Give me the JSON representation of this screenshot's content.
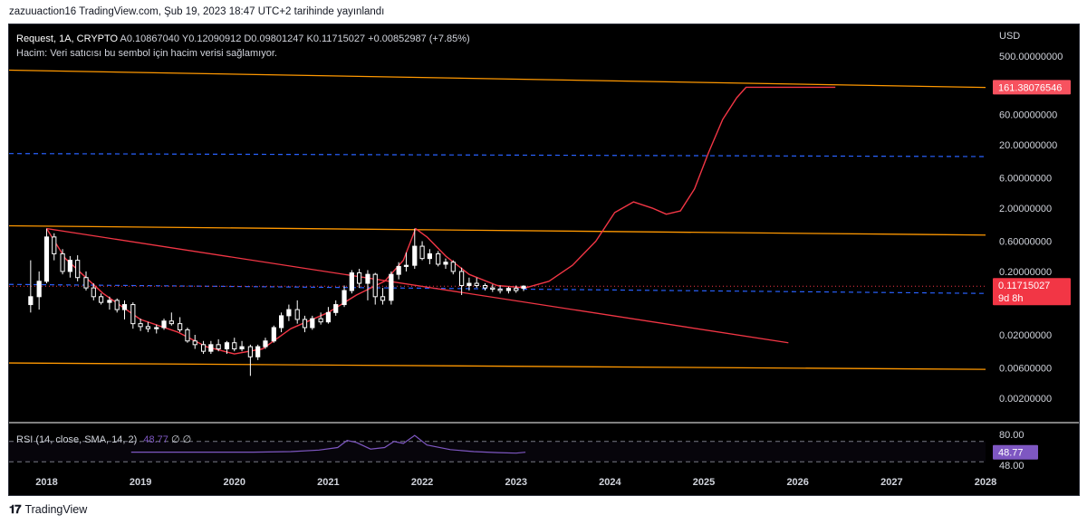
{
  "publish_line": "zazuuaction16 TradingView.com, Şub 19, 2023 18:47 UTC+2 tarihinde yayınlandı",
  "legend": {
    "symbol_line": "Request, 1A, CRYPTO",
    "ohlc": "A0.10867040  Y0.12090912  D0.09801247  K0.11715027  +0.00852987 (+7.85%)",
    "volume_note": "Hacim: Veri satıcısı bu sembol için hacim verisi sağlamıyor."
  },
  "rsi_legend": {
    "label": "RSI (14, close, SMA, 14, 2)",
    "value": "48.77",
    "extra": "∅  ∅"
  },
  "footer": {
    "logo_mark": "𝟏𝟕",
    "logo_word": "TradingView"
  },
  "chart_data": {
    "type": "candlestick",
    "title": "Request, 1A, CRYPTO",
    "currency_label": "USD",
    "y_scale": "log",
    "y_tick_labels": [
      "500.00000000",
      "60.00000000",
      "20.00000000",
      "6.00000000",
      "2.00000000",
      "0.60000000",
      "0.20000000",
      "0.02000000",
      "0.00600000",
      "0.00200000"
    ],
    "y_ticks": [
      500,
      60,
      20,
      6,
      2,
      0.6,
      0.2,
      0.02,
      0.006,
      0.002
    ],
    "x_tick_labels": [
      "2018",
      "2019",
      "2020",
      "2021",
      "2022",
      "2023",
      "2024",
      "2025",
      "2026",
      "2027",
      "2028"
    ],
    "x_range": [
      2017.6,
      2028.0
    ],
    "last_price": {
      "label": "0.11715027",
      "countdown": "9d 8h",
      "value": 0.11715027
    },
    "target_price": {
      "label": "161.38076546",
      "value": 161.38
    },
    "ohlc": {
      "open": "0.10867040",
      "high": "0.12090912",
      "low": "0.09801247",
      "close": "0.11715027",
      "change": "+0.00852987",
      "change_pct": "+7.85%"
    },
    "candles": [
      {
        "t": 2017.83,
        "o": 0.06,
        "h": 0.3,
        "l": 0.045,
        "c": 0.08
      },
      {
        "t": 2017.92,
        "o": 0.08,
        "h": 0.2,
        "l": 0.05,
        "c": 0.14
      },
      {
        "t": 2018.0,
        "o": 0.14,
        "h": 0.95,
        "l": 0.13,
        "c": 0.7
      },
      {
        "t": 2018.08,
        "o": 0.7,
        "h": 0.8,
        "l": 0.3,
        "c": 0.38
      },
      {
        "t": 2018.17,
        "o": 0.38,
        "h": 0.45,
        "l": 0.18,
        "c": 0.2
      },
      {
        "t": 2018.25,
        "o": 0.2,
        "h": 0.35,
        "l": 0.16,
        "c": 0.3
      },
      {
        "t": 2018.33,
        "o": 0.3,
        "h": 0.36,
        "l": 0.14,
        "c": 0.16
      },
      {
        "t": 2018.42,
        "o": 0.16,
        "h": 0.2,
        "l": 0.1,
        "c": 0.11
      },
      {
        "t": 2018.5,
        "o": 0.11,
        "h": 0.13,
        "l": 0.07,
        "c": 0.08
      },
      {
        "t": 2018.58,
        "o": 0.08,
        "h": 0.09,
        "l": 0.06,
        "c": 0.065
      },
      {
        "t": 2018.67,
        "o": 0.065,
        "h": 0.08,
        "l": 0.05,
        "c": 0.07
      },
      {
        "t": 2018.75,
        "o": 0.07,
        "h": 0.075,
        "l": 0.045,
        "c": 0.05
      },
      {
        "t": 2018.83,
        "o": 0.05,
        "h": 0.07,
        "l": 0.035,
        "c": 0.06
      },
      {
        "t": 2018.92,
        "o": 0.06,
        "h": 0.065,
        "l": 0.025,
        "c": 0.03
      },
      {
        "t": 2019.0,
        "o": 0.03,
        "h": 0.036,
        "l": 0.023,
        "c": 0.027
      },
      {
        "t": 2019.08,
        "o": 0.027,
        "h": 0.032,
        "l": 0.022,
        "c": 0.025
      },
      {
        "t": 2019.17,
        "o": 0.025,
        "h": 0.029,
        "l": 0.021,
        "c": 0.026
      },
      {
        "t": 2019.25,
        "o": 0.026,
        "h": 0.036,
        "l": 0.024,
        "c": 0.033
      },
      {
        "t": 2019.33,
        "o": 0.033,
        "h": 0.045,
        "l": 0.028,
        "c": 0.03
      },
      {
        "t": 2019.42,
        "o": 0.03,
        "h": 0.038,
        "l": 0.022,
        "c": 0.024
      },
      {
        "t": 2019.5,
        "o": 0.024,
        "h": 0.026,
        "l": 0.015,
        "c": 0.016
      },
      {
        "t": 2019.58,
        "o": 0.016,
        "h": 0.02,
        "l": 0.012,
        "c": 0.014
      },
      {
        "t": 2019.67,
        "o": 0.014,
        "h": 0.016,
        "l": 0.01,
        "c": 0.011
      },
      {
        "t": 2019.75,
        "o": 0.011,
        "h": 0.016,
        "l": 0.01,
        "c": 0.014
      },
      {
        "t": 2019.83,
        "o": 0.014,
        "h": 0.017,
        "l": 0.011,
        "c": 0.012
      },
      {
        "t": 2019.92,
        "o": 0.012,
        "h": 0.016,
        "l": 0.01,
        "c": 0.015
      },
      {
        "t": 2020.0,
        "o": 0.015,
        "h": 0.018,
        "l": 0.011,
        "c": 0.012
      },
      {
        "t": 2020.08,
        "o": 0.012,
        "h": 0.016,
        "l": 0.011,
        "c": 0.013
      },
      {
        "t": 2020.17,
        "o": 0.013,
        "h": 0.014,
        "l": 0.0045,
        "c": 0.009
      },
      {
        "t": 2020.25,
        "o": 0.009,
        "h": 0.014,
        "l": 0.008,
        "c": 0.013
      },
      {
        "t": 2020.33,
        "o": 0.013,
        "h": 0.018,
        "l": 0.012,
        "c": 0.016
      },
      {
        "t": 2020.42,
        "o": 0.016,
        "h": 0.028,
        "l": 0.015,
        "c": 0.026
      },
      {
        "t": 2020.5,
        "o": 0.026,
        "h": 0.045,
        "l": 0.022,
        "c": 0.04
      },
      {
        "t": 2020.58,
        "o": 0.04,
        "h": 0.06,
        "l": 0.033,
        "c": 0.05
      },
      {
        "t": 2020.67,
        "o": 0.05,
        "h": 0.07,
        "l": 0.03,
        "c": 0.035
      },
      {
        "t": 2020.75,
        "o": 0.035,
        "h": 0.04,
        "l": 0.022,
        "c": 0.026
      },
      {
        "t": 2020.83,
        "o": 0.026,
        "h": 0.04,
        "l": 0.024,
        "c": 0.036
      },
      {
        "t": 2020.92,
        "o": 0.036,
        "h": 0.045,
        "l": 0.029,
        "c": 0.032
      },
      {
        "t": 2021.0,
        "o": 0.032,
        "h": 0.055,
        "l": 0.03,
        "c": 0.045
      },
      {
        "t": 2021.08,
        "o": 0.045,
        "h": 0.07,
        "l": 0.04,
        "c": 0.06
      },
      {
        "t": 2021.17,
        "o": 0.06,
        "h": 0.12,
        "l": 0.055,
        "c": 0.1
      },
      {
        "t": 2021.25,
        "o": 0.1,
        "h": 0.21,
        "l": 0.09,
        "c": 0.19
      },
      {
        "t": 2021.33,
        "o": 0.19,
        "h": 0.22,
        "l": 0.11,
        "c": 0.13
      },
      {
        "t": 2021.42,
        "o": 0.13,
        "h": 0.21,
        "l": 0.07,
        "c": 0.18
      },
      {
        "t": 2021.5,
        "o": 0.18,
        "h": 0.19,
        "l": 0.06,
        "c": 0.08
      },
      {
        "t": 2021.58,
        "o": 0.08,
        "h": 0.11,
        "l": 0.06,
        "c": 0.07
      },
      {
        "t": 2021.67,
        "o": 0.07,
        "h": 0.2,
        "l": 0.06,
        "c": 0.18
      },
      {
        "t": 2021.75,
        "o": 0.18,
        "h": 0.28,
        "l": 0.15,
        "c": 0.24
      },
      {
        "t": 2021.83,
        "o": 0.24,
        "h": 0.4,
        "l": 0.2,
        "c": 0.25
      },
      {
        "t": 2021.92,
        "o": 0.25,
        "h": 0.95,
        "l": 0.22,
        "c": 0.5
      },
      {
        "t": 2022.0,
        "o": 0.5,
        "h": 0.6,
        "l": 0.3,
        "c": 0.32
      },
      {
        "t": 2022.08,
        "o": 0.32,
        "h": 0.45,
        "l": 0.26,
        "c": 0.38
      },
      {
        "t": 2022.17,
        "o": 0.38,
        "h": 0.42,
        "l": 0.24,
        "c": 0.26
      },
      {
        "t": 2022.25,
        "o": 0.26,
        "h": 0.32,
        "l": 0.22,
        "c": 0.28
      },
      {
        "t": 2022.33,
        "o": 0.28,
        "h": 0.3,
        "l": 0.18,
        "c": 0.2
      },
      {
        "t": 2022.42,
        "o": 0.2,
        "h": 0.23,
        "l": 0.085,
        "c": 0.12
      },
      {
        "t": 2022.5,
        "o": 0.12,
        "h": 0.16,
        "l": 0.1,
        "c": 0.13
      },
      {
        "t": 2022.58,
        "o": 0.13,
        "h": 0.16,
        "l": 0.11,
        "c": 0.12
      },
      {
        "t": 2022.67,
        "o": 0.12,
        "h": 0.13,
        "l": 0.1,
        "c": 0.11
      },
      {
        "t": 2022.75,
        "o": 0.11,
        "h": 0.125,
        "l": 0.095,
        "c": 0.105
      },
      {
        "t": 2022.83,
        "o": 0.105,
        "h": 0.12,
        "l": 0.09,
        "c": 0.1
      },
      {
        "t": 2022.92,
        "o": 0.1,
        "h": 0.115,
        "l": 0.09,
        "c": 0.108
      },
      {
        "t": 2023.0,
        "o": 0.108,
        "h": 0.12,
        "l": 0.092,
        "c": 0.1
      },
      {
        "t": 2023.08,
        "o": 0.1087,
        "h": 0.1209,
        "l": 0.098,
        "c": 0.1172
      }
    ],
    "horizontal_levels": [
      {
        "kind": "orange-line",
        "from": [
          2017.6,
          300
        ],
        "to": [
          2028.0,
          160
        ]
      },
      {
        "kind": "orange-line",
        "from": [
          2017.6,
          1.05
        ],
        "to": [
          2028.0,
          0.75
        ]
      },
      {
        "kind": "orange-line",
        "from": [
          2017.6,
          0.0072
        ],
        "to": [
          2028.0,
          0.0057
        ]
      },
      {
        "kind": "blue-dashed",
        "from": [
          2017.6,
          14.5
        ],
        "to": [
          2028.0,
          13.0
        ]
      },
      {
        "kind": "blue-dashed",
        "from": [
          2017.6,
          0.125
        ],
        "to": [
          2028.0,
          0.09
        ]
      },
      {
        "kind": "red-dotted",
        "from": [
          2017.6,
          0.1172
        ],
        "to": [
          2028.0,
          0.1172
        ]
      }
    ],
    "trendline": {
      "from": [
        2018.0,
        0.95
      ],
      "to": [
        2025.9,
        0.015
      ]
    },
    "projection_path": [
      [
        2018.0,
        0.95
      ],
      [
        2018.2,
        0.32
      ],
      [
        2018.6,
        0.09
      ],
      [
        2019.0,
        0.035
      ],
      [
        2019.4,
        0.022
      ],
      [
        2019.7,
        0.013
      ],
      [
        2020.0,
        0.01
      ],
      [
        2020.3,
        0.012
      ],
      [
        2020.6,
        0.025
      ],
      [
        2021.0,
        0.045
      ],
      [
        2021.3,
        0.085
      ],
      [
        2021.6,
        0.14
      ],
      [
        2021.8,
        0.3
      ],
      [
        2021.93,
        0.95
      ],
      [
        2022.05,
        0.7
      ],
      [
        2022.25,
        0.35
      ],
      [
        2022.5,
        0.18
      ],
      [
        2022.8,
        0.12
      ],
      [
        2023.1,
        0.11
      ],
      [
        2023.35,
        0.14
      ],
      [
        2023.6,
        0.25
      ],
      [
        2023.85,
        0.6
      ],
      [
        2024.05,
        1.7
      ],
      [
        2024.25,
        2.5
      ],
      [
        2024.45,
        2.0
      ],
      [
        2024.6,
        1.6
      ],
      [
        2024.75,
        1.8
      ],
      [
        2024.9,
        4.0
      ],
      [
        2025.05,
        15
      ],
      [
        2025.2,
        50
      ],
      [
        2025.35,
        110
      ],
      [
        2025.45,
        161.38
      ],
      [
        2026.4,
        161.38
      ]
    ],
    "rsi": {
      "params": "14, close, SMA, 14, 2",
      "value": 48.77,
      "tick_labels": [
        "80.00",
        "48.00"
      ],
      "upper_band": 70,
      "lower_band": 30,
      "range": [
        0,
        100
      ],
      "line": [
        [
          2018.9,
          49
        ],
        [
          2019.5,
          49
        ],
        [
          2020.2,
          49
        ],
        [
          2020.6,
          50
        ],
        [
          2020.9,
          53
        ],
        [
          2021.1,
          58
        ],
        [
          2021.2,
          72
        ],
        [
          2021.3,
          68
        ],
        [
          2021.45,
          55
        ],
        [
          2021.6,
          58
        ],
        [
          2021.7,
          70
        ],
        [
          2021.8,
          66
        ],
        [
          2021.92,
          82
        ],
        [
          2022.05,
          63
        ],
        [
          2022.3,
          54
        ],
        [
          2022.55,
          50
        ],
        [
          2022.8,
          48
        ],
        [
          2023.0,
          47
        ],
        [
          2023.1,
          48.77
        ]
      ]
    },
    "colors": {
      "background": "#000000",
      "up_candle": "#ffffff",
      "down_candle": "#ffffff",
      "orange_line": "#ff9800",
      "blue_dashed": "#2962ff",
      "red_path": "#f23645",
      "rsi_line": "#7e57c2",
      "price_badge": "#f23645",
      "target_badge": "#f7525f",
      "rsi_badge": "#7e57c2",
      "axis_text": "#d1d4dc"
    }
  }
}
